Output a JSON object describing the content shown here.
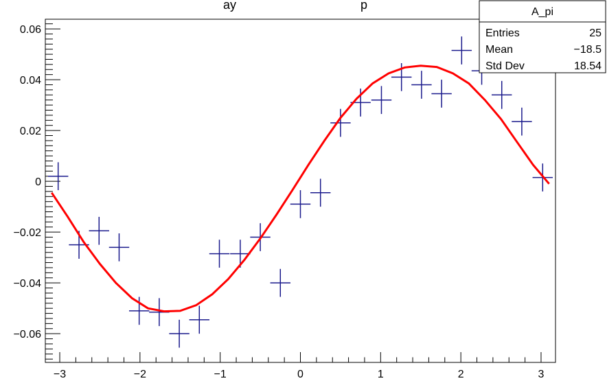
{
  "chart_data": {
    "type": "scatter",
    "title": "",
    "xlabel": "",
    "ylabel": "",
    "xlim": [
      -3.18,
      3.18
    ],
    "ylim": [
      -0.0713,
      0.0638
    ],
    "grid": false,
    "x_ticks": [
      -3,
      -2,
      -1,
      0,
      1,
      2,
      3
    ],
    "x_tick_labels": [
      "−3",
      "−2",
      "−1",
      "0",
      "1",
      "2",
      "3"
    ],
    "y_ticks": [
      -0.06,
      -0.04,
      -0.02,
      0,
      0.02,
      0.04,
      0.06
    ],
    "y_tick_labels": [
      "−0.06",
      "−0.04",
      "−0.02",
      "0",
      "0.02",
      "0.04",
      "0.06"
    ],
    "marker_color": "#1a1a8c",
    "fit_color": "#ff0000",
    "x_error_halfwidth": 0.126,
    "points": [
      {
        "x": -3.02,
        "y": 0.002,
        "ey": 0.0055
      },
      {
        "x": -2.76,
        "y": -0.025,
        "ey": 0.0055
      },
      {
        "x": -2.51,
        "y": -0.0195,
        "ey": 0.0055
      },
      {
        "x": -2.26,
        "y": -0.026,
        "ey": 0.0055
      },
      {
        "x": -2.01,
        "y": -0.051,
        "ey": 0.0055
      },
      {
        "x": -1.76,
        "y": -0.0515,
        "ey": 0.0055
      },
      {
        "x": -1.51,
        "y": -0.06,
        "ey": 0.0055
      },
      {
        "x": -1.26,
        "y": -0.0545,
        "ey": 0.0055
      },
      {
        "x": -1.01,
        "y": -0.0285,
        "ey": 0.0055
      },
      {
        "x": -0.75,
        "y": -0.0285,
        "ey": 0.0055
      },
      {
        "x": -0.5,
        "y": -0.022,
        "ey": 0.0055
      },
      {
        "x": -0.25,
        "y": -0.04,
        "ey": 0.0055
      },
      {
        "x": 0.0,
        "y": -0.009,
        "ey": 0.0055
      },
      {
        "x": 0.25,
        "y": -0.0045,
        "ey": 0.0055
      },
      {
        "x": 0.5,
        "y": 0.023,
        "ey": 0.0055
      },
      {
        "x": 0.75,
        "y": 0.031,
        "ey": 0.0055
      },
      {
        "x": 1.01,
        "y": 0.032,
        "ey": 0.0055
      },
      {
        "x": 1.26,
        "y": 0.041,
        "ey": 0.0055
      },
      {
        "x": 1.51,
        "y": 0.038,
        "ey": 0.0055
      },
      {
        "x": 1.76,
        "y": 0.0345,
        "ey": 0.0055
      },
      {
        "x": 2.01,
        "y": 0.0515,
        "ey": 0.0055
      },
      {
        "x": 2.26,
        "y": 0.0435,
        "ey": 0.0055
      },
      {
        "x": 2.51,
        "y": 0.034,
        "ey": 0.0055
      },
      {
        "x": 2.76,
        "y": 0.0235,
        "ey": 0.0055
      },
      {
        "x": 3.02,
        "y": 0.0015,
        "ey": 0.0055
      }
    ],
    "fit_points": [
      {
        "x": -3.1,
        "y": -0.0045
      },
      {
        "x": -2.9,
        "y": -0.014
      },
      {
        "x": -2.7,
        "y": -0.024
      },
      {
        "x": -2.5,
        "y": -0.0325
      },
      {
        "x": -2.3,
        "y": -0.04
      },
      {
        "x": -2.1,
        "y": -0.046
      },
      {
        "x": -1.9,
        "y": -0.05
      },
      {
        "x": -1.7,
        "y": -0.0512
      },
      {
        "x": -1.5,
        "y": -0.051
      },
      {
        "x": -1.3,
        "y": -0.0488
      },
      {
        "x": -1.1,
        "y": -0.0445
      },
      {
        "x": -0.9,
        "y": -0.0385
      },
      {
        "x": -0.7,
        "y": -0.031
      },
      {
        "x": -0.5,
        "y": -0.0225
      },
      {
        "x": -0.3,
        "y": -0.0132
      },
      {
        "x": -0.1,
        "y": -0.0035
      },
      {
        "x": 0.1,
        "y": 0.0065
      },
      {
        "x": 0.3,
        "y": 0.016
      },
      {
        "x": 0.5,
        "y": 0.025
      },
      {
        "x": 0.7,
        "y": 0.0325
      },
      {
        "x": 0.9,
        "y": 0.0385
      },
      {
        "x": 1.1,
        "y": 0.0425
      },
      {
        "x": 1.3,
        "y": 0.0448
      },
      {
        "x": 1.5,
        "y": 0.0455
      },
      {
        "x": 1.7,
        "y": 0.045
      },
      {
        "x": 1.9,
        "y": 0.0425
      },
      {
        "x": 2.1,
        "y": 0.0385
      },
      {
        "x": 2.3,
        "y": 0.032
      },
      {
        "x": 2.5,
        "y": 0.0245
      },
      {
        "x": 2.7,
        "y": 0.0155
      },
      {
        "x": 2.9,
        "y": 0.0065
      },
      {
        "x": 3.1,
        "y": -0.001
      }
    ]
  },
  "stats_box": {
    "name": "A_pi",
    "rows": [
      {
        "label": "Entries",
        "value": "25"
      },
      {
        "label": "Mean",
        "value": "−18.5"
      },
      {
        "label": "Std Dev",
        "value": "18.54"
      }
    ]
  }
}
